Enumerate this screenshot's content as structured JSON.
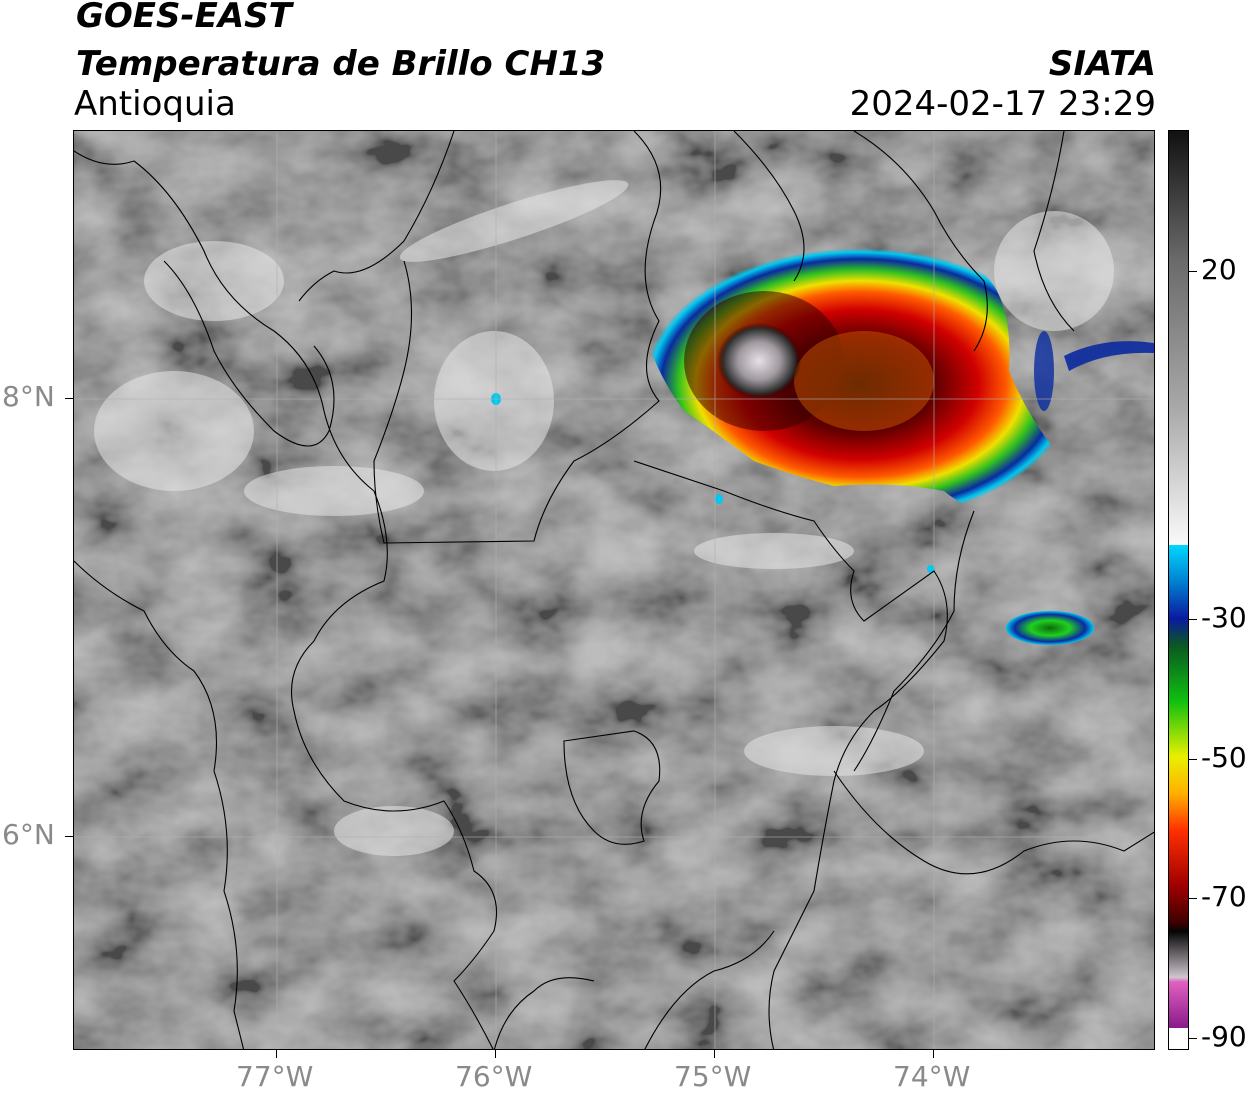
{
  "header": {
    "satellite": "GOES-EAST",
    "product": "Temperatura de Brillo CH13",
    "region": "Antioquia",
    "agency": "SIATA",
    "datetime": "2024-02-17 23:29"
  },
  "map": {
    "lon_ticks": [
      "77°W",
      "76°W",
      "75°W",
      "74°W"
    ],
    "lat_ticks": [
      "8°N",
      "6°N"
    ],
    "gridlines": true
  },
  "colorbar": {
    "ticks": [
      "20",
      "-30",
      "-50",
      "-70",
      "-90"
    ],
    "colors": {
      "warm_top": "#111111",
      "grey": "#8a8a8a",
      "white": "#ffffff",
      "cyan": "#00d8ff",
      "blue": "#0a1aa0",
      "green": "#10c010",
      "yellow": "#f0f000",
      "orange": "#ff8800",
      "red": "#e00000",
      "dark_red": "#500000",
      "black": "#000000",
      "light_grey": "#cfc6ce",
      "pink": "#e060c0",
      "purple": "#8a1a8a"
    }
  }
}
